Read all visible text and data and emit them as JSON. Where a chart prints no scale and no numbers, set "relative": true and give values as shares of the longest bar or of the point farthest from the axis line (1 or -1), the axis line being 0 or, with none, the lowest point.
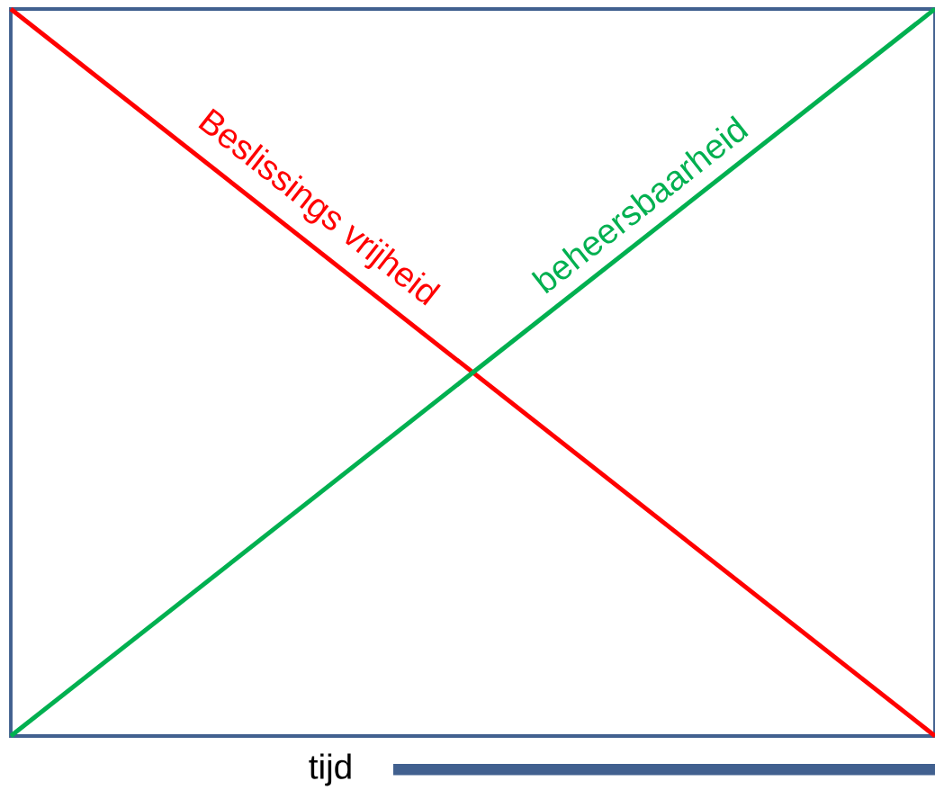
{
  "chart_data": {
    "type": "line",
    "relative": true,
    "xlabel": "tijd",
    "categories": [
      null,
      null
    ],
    "series": [
      {
        "name": "Beslissings vrijheid",
        "color": "#ff0000",
        "values": [
          1,
          0
        ]
      },
      {
        "name": "beheersbaarheid",
        "color": "#00b050",
        "values": [
          0,
          1
        ]
      }
    ]
  }
}
